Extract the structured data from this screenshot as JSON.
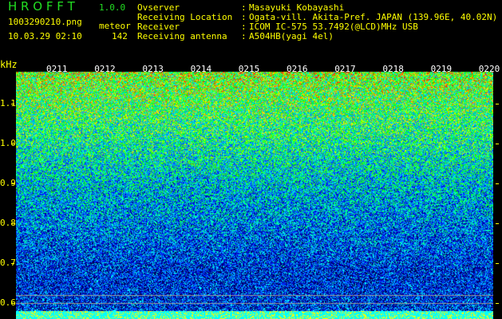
{
  "header": {
    "app_title": "H R O F F T",
    "version": "1.0.0",
    "filename": "1003290210.png",
    "datetime": "10.03.29 02:10",
    "meteor_label": "meteor",
    "meteor_count": "142"
  },
  "info": [
    {
      "label": "Ovserver",
      "value": "Masayuki Kobayashi"
    },
    {
      "label": "Receiving Location",
      "value": "Ogata-vill. Akita-Pref. JAPAN (139.96E, 40.02N)"
    },
    {
      "label": "Receiver",
      "value": "ICOM IC-575 53.7492(@LCD)MHz USB"
    },
    {
      "label": "Receiving antenna",
      "value": "A504HB(yagi 4el)"
    }
  ],
  "chart_data": {
    "type": "heatmap",
    "ylabel": "kHz",
    "ylim": [
      0.58,
      1.2
    ],
    "y_ticks": [
      "1.1",
      "1.0",
      "0.9",
      "0.8",
      "0.7",
      "0.6"
    ],
    "x_ticks": [
      "0211",
      "0212",
      "0213",
      "0214",
      "0215",
      "0216",
      "0217",
      "0218",
      "0219",
      "0220"
    ],
    "grid": false,
    "colors": {
      "low": "#000033",
      "mid": "#0000ff",
      "high": "#00ff00",
      "peak": "#ff0000",
      "bottom_bar": "#00ffff",
      "bottom_spikes": "#ffff00"
    }
  }
}
